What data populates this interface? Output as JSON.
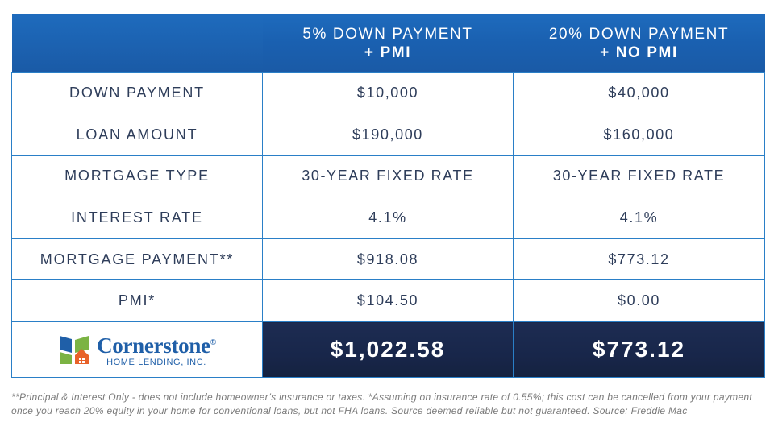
{
  "header": {
    "col1": "",
    "col2_line1": "5% DOWN PAYMENT",
    "col2_line2": "+ PMI",
    "col3_line1": "20% DOWN PAYMENT",
    "col3_line2": "+ NO PMI"
  },
  "rows": [
    {
      "label": "DOWN PAYMENT",
      "a": "$10,000",
      "b": "$40,000"
    },
    {
      "label": "LOAN AMOUNT",
      "a": "$190,000",
      "b": "$160,000"
    },
    {
      "label": "MORTGAGE TYPE",
      "a": "30-YEAR FIXED RATE",
      "b": "30-YEAR FIXED RATE"
    },
    {
      "label": "INTEREST RATE",
      "a": "4.1%",
      "b": "4.1%"
    },
    {
      "label": "MORTGAGE PAYMENT**",
      "a": "$918.08",
      "b": "$773.12"
    },
    {
      "label": "PMI*",
      "a": "$104.50",
      "b": "$0.00"
    }
  ],
  "totals": {
    "a": "$1,022.58",
    "b": "$773.12"
  },
  "logo": {
    "name": "Cornerstone",
    "reg": "®",
    "sub": "HOME LENDING, INC."
  },
  "colors": {
    "header_blue": "#1a60b0",
    "total_navy": "#18264a",
    "border": "#2a7fc7",
    "logo_blue": "#1f5fa8",
    "logo_green": "#7bb343",
    "logo_orange": "#e8622a"
  },
  "footnote": "**Principal & Interest Only - does not include homeowner’s insurance or taxes. *Assuming on insurance rate of 0.55%; this cost can be cancelled from your payment once you reach 20% equity in your home for conventional loans, but not FHA loans. Source deemed reliable but not guaranteed. Source: Freddie Mac"
}
